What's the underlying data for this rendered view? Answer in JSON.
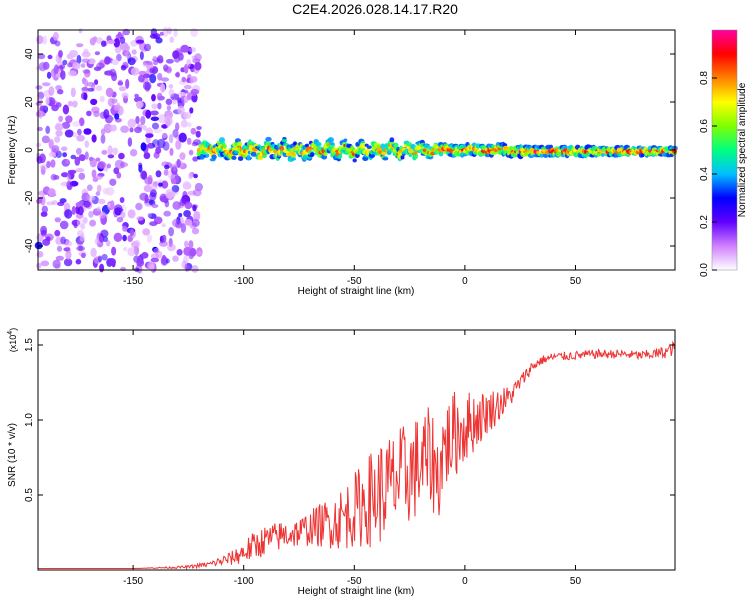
{
  "title": "C2E4.2026.028.14.17.R20",
  "chart_data": [
    {
      "type": "heatmap",
      "name": "spectrogram",
      "xlabel": "Height of straight line (km)",
      "ylabel": "Frequency (Hz)",
      "xlim": [
        -193,
        95
      ],
      "ylim": [
        -50,
        50
      ],
      "x_ticks": [
        -150,
        -100,
        -50,
        0,
        50
      ],
      "y_ticks": [
        -40,
        -20,
        0,
        20,
        40
      ],
      "x_tick_labels": [
        "-150",
        "-100",
        "-50",
        "0",
        "50"
      ],
      "y_tick_labels": [
        "-40",
        "-20",
        "0",
        "20",
        "40"
      ],
      "colorbar": {
        "label": "Normalized spectral amplitude",
        "range": [
          0.0,
          1.0
        ],
        "ticks": [
          0.0,
          0.2,
          0.4,
          0.6,
          0.8
        ],
        "tick_labels": [
          "0.0",
          "0.2",
          "0.4",
          "0.6",
          "0.8"
        ],
        "colormap": [
          "#ffffff",
          "#d080ff",
          "#6000ff",
          "#0000ff",
          "#00c0ff",
          "#00ff80",
          "#80ff00",
          "#ffff00",
          "#ff8000",
          "#ff0000",
          "#ff00a0"
        ]
      },
      "regions": [
        {
          "description": "noise",
          "x_range": [
            -193,
            -120
          ],
          "freq_range": [
            -50,
            50
          ],
          "amplitude": [
            0.05,
            0.25
          ]
        },
        {
          "description": "signal band",
          "x_range": [
            -120,
            95
          ],
          "freq_center": 0,
          "freq_halfwidth": [
            3,
            1.5
          ],
          "amplitude": [
            0.3,
            1.0
          ]
        }
      ]
    },
    {
      "type": "line",
      "name": "snr",
      "xlabel": "Height of straight line (km)",
      "ylabel": "SNR (10 * v/v)",
      "y_multiplier": "(x10",
      "y_multiplier_exp": "4",
      "y_multiplier_close": ")",
      "xlim": [
        -193,
        95
      ],
      "ylim": [
        0,
        1.6
      ],
      "x_ticks": [
        -150,
        -100,
        -50,
        0,
        50
      ],
      "y_ticks": [
        0.5,
        1.0,
        1.5
      ],
      "x_tick_labels": [
        "-150",
        "-100",
        "-50",
        "0",
        "50"
      ],
      "y_tick_labels": [
        "0.5",
        "1.0",
        "1.5"
      ],
      "color": "#ee3333",
      "series": [
        {
          "name": "SNR",
          "x": [
            -193,
            -150,
            -125,
            -115,
            -105,
            -100,
            -95,
            -90,
            -85,
            -80,
            -75,
            -70,
            -65,
            -60,
            -55,
            -50,
            -45,
            -40,
            -35,
            -30,
            -25,
            -20,
            -15,
            -12,
            -10,
            -5,
            0,
            5,
            10,
            15,
            20,
            25,
            30,
            35,
            40,
            50,
            60,
            70,
            80,
            90,
            95
          ],
          "values": [
            0.01,
            0.01,
            0.02,
            0.04,
            0.08,
            0.12,
            0.16,
            0.2,
            0.22,
            0.24,
            0.25,
            0.28,
            0.3,
            0.32,
            0.35,
            0.4,
            0.45,
            0.5,
            0.55,
            0.6,
            0.65,
            0.7,
            0.75,
            0.6,
            0.8,
            0.9,
            0.95,
            1.0,
            1.05,
            1.1,
            1.15,
            1.25,
            1.35,
            1.4,
            1.42,
            1.43,
            1.44,
            1.44,
            1.43,
            1.45,
            1.48
          ],
          "noise_amplitude": [
            0.0,
            0.0,
            0.01,
            0.02,
            0.05,
            0.08,
            0.1,
            0.1,
            0.1,
            0.1,
            0.1,
            0.12,
            0.15,
            0.18,
            0.22,
            0.25,
            0.3,
            0.35,
            0.35,
            0.35,
            0.35,
            0.35,
            0.35,
            0.3,
            0.3,
            0.3,
            0.25,
            0.2,
            0.15,
            0.12,
            0.08,
            0.05,
            0.04,
            0.03,
            0.03,
            0.03,
            0.03,
            0.03,
            0.03,
            0.04,
            0.05
          ]
        }
      ]
    }
  ]
}
